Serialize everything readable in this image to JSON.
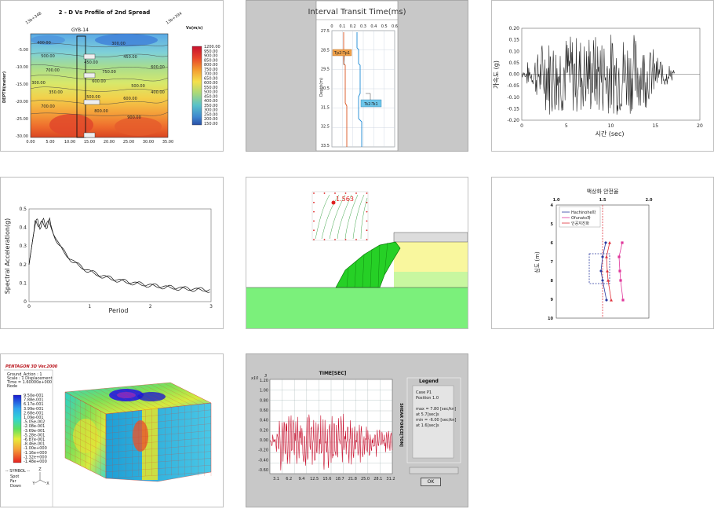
{
  "panels": {
    "vs_profile": {
      "title": "2 - D Vs Profile of 2nd Spread",
      "borehole": "GYB-14",
      "y_label": "DEPTH(meter)",
      "legend_title": "Vs(m/s)",
      "left_corner": "13b+348",
      "right_corner": "13b+394",
      "x_ticks": [
        "0.00",
        "5.00",
        "10.00",
        "15.00",
        "20.00",
        "25.00",
        "30.00",
        "35.00"
      ],
      "y_ticks": [
        "-5.00",
        "-10.00",
        "-15.00",
        "-20.00",
        "-25.00",
        "-30.00"
      ],
      "legend_values": [
        "1200.00",
        "950.00",
        "900.00",
        "850.00",
        "800.00",
        "750.00",
        "700.00",
        "650.00",
        "600.00",
        "550.00",
        "500.00",
        "450.00",
        "400.00",
        "350.00",
        "300.00",
        "250.00",
        "200.00",
        "150.00"
      ],
      "contour_labels": [
        "400.00",
        "300.00",
        "500.00",
        "450.00",
        "450.00",
        "600.00",
        "700.00",
        "750.00",
        "600.00",
        "500.00",
        "300.00",
        "350.00",
        "400.00",
        "500.00",
        "600.00",
        "700.00",
        "800.00",
        "900.00"
      ]
    },
    "interval_transit": {
      "title": "Interval Transit Time(ms)",
      "x_ticks": [
        "0",
        "0.1",
        "0.2",
        "0.3",
        "0.4",
        "0.5",
        "0.6"
      ],
      "y_ticks": [
        "27.5",
        "28.5",
        "29.5",
        "30.5",
        "31.5",
        "32.5",
        "33.5"
      ],
      "y_label": "Depth(m)",
      "label_a": "Ts2-Ts1",
      "label_b": "Tp2-Tp1"
    },
    "accel_time": {
      "ylabel": "가속도 (g)",
      "xlabel": "시간 (sec)",
      "x_ticks": [
        "0",
        "5",
        "10",
        "15",
        "20"
      ],
      "y_ticks": [
        "0.20",
        "0.15",
        "0.10",
        "0.05",
        "0.00",
        "-0.05",
        "-0.10",
        "-0.15",
        "-0.20"
      ]
    },
    "spectral": {
      "ylabel": "Spectral Acceleration(g)",
      "xlabel": "Period",
      "x_ticks": [
        "0",
        "1",
        "2",
        "3"
      ],
      "y_ticks": [
        "0.5",
        "0.4",
        "0.3",
        "0.2",
        "0.1",
        "0"
      ]
    },
    "slope": {
      "factor_label": "1.563"
    },
    "liquefaction": {
      "title": "액상화 안전율",
      "ylabel": "심도 (m)",
      "x_ticks": [
        "1.0",
        "1.5",
        "2.0"
      ],
      "y_ticks": [
        "4",
        "5",
        "6",
        "7",
        "8",
        "9",
        "10"
      ],
      "legend": [
        "Hachinohe파",
        "Ofunato파",
        "인공지진파"
      ],
      "colors": [
        "#2b3aa0",
        "#e0379b",
        "#e0303a"
      ]
    },
    "pentagon": {
      "software": "PENTAGON 3D Ver.2000",
      "colorbar_values": [
        "9.50e-001",
        "7.88e-001",
        "6.17e-001",
        "3.99e-001",
        "2.68e-001",
        "1.09e-001",
        "-5.05e-002",
        "-2.08e-001",
        "-3.69e-001",
        "-5.28e-001",
        "-6.87e-001",
        "-8.46e-001",
        "-1.00e+000",
        "-1.16e+000",
        "-1.32e+000",
        "-1.48e+000"
      ],
      "info_lines": [
        "Ground_Action : 1",
        "Scale : 1 Displacement",
        "Time = 1.60000e+000",
        "Node"
      ],
      "axis_labels": [
        "X",
        "Y",
        "Z"
      ],
      "symbol_heading": "-- SYMBOL --",
      "symbol_lines": [
        "Spot",
        "Far",
        "Down"
      ]
    },
    "time_shear": {
      "title": "TIME[SEC]",
      "exponent": "x10",
      "ylabel": "SHEAR FORCE[TON]",
      "y_ticks": [
        "1.20",
        "1.00",
        "0.80",
        "0.60",
        "0.40",
        "0.20",
        "0.00",
        "-0.20",
        "-0.40",
        "-0.60"
      ],
      "x_ticks": [
        "3.1",
        "6.2",
        "9.4",
        "12.5",
        "15.6",
        "18.7",
        "21.8",
        "25.0",
        "28.1",
        "31.2"
      ],
      "legend_title": "Legend",
      "legend_lines": [
        "Case P1",
        "Position 1.0",
        "",
        "max = 7.80 [sec/kn]",
        "at 5.7[sec]s",
        "min = -6.00 [sec/kn]",
        "at 1.6[sec]s"
      ],
      "ok_label": "OK"
    }
  }
}
